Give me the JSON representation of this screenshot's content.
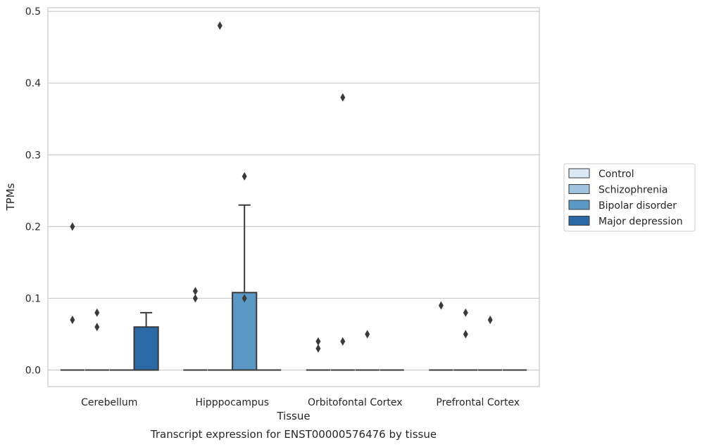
{
  "chart_data": {
    "type": "box",
    "title": "",
    "caption": "Transcript expression for ENST00000576476 by tissue",
    "xlabel": "Tissue",
    "ylabel": "TPMs",
    "ylim": [
      -0.023,
      0.505
    ],
    "yticks": [
      0.0,
      0.1,
      0.2,
      0.3,
      0.4,
      0.5
    ],
    "ytick_labels": [
      "0.0",
      "0.1",
      "0.2",
      "0.3",
      "0.4",
      "0.5"
    ],
    "categories": [
      "Cerebellum",
      "Hipppocampus",
      "Orbitofontal Cortex",
      "Prefrontal Cortex"
    ],
    "grid": "horizontal",
    "legend_position": "right",
    "series": [
      {
        "name": "Control",
        "color": "#dbe9f6",
        "boxes": [
          {
            "q1": 0,
            "median": 0,
            "q3": 0,
            "whisker_low": 0,
            "whisker_high": 0,
            "outliers": [
              0.2,
              0.07
            ]
          },
          {
            "q1": 0,
            "median": 0,
            "q3": 0,
            "whisker_low": 0,
            "whisker_high": 0,
            "outliers": [
              0.11,
              0.1
            ]
          },
          {
            "q1": 0,
            "median": 0,
            "q3": 0,
            "whisker_low": 0,
            "whisker_high": 0,
            "outliers": [
              0.04,
              0.03
            ]
          },
          {
            "q1": 0,
            "median": 0,
            "q3": 0,
            "whisker_low": 0,
            "whisker_high": 0,
            "outliers": [
              0.09
            ]
          }
        ]
      },
      {
        "name": "Schizophrenia",
        "color": "#a1c4de",
        "boxes": [
          {
            "q1": 0,
            "median": 0,
            "q3": 0,
            "whisker_low": 0,
            "whisker_high": 0,
            "outliers": [
              0.08,
              0.06
            ]
          },
          {
            "q1": 0,
            "median": 0,
            "q3": 0,
            "whisker_low": 0,
            "whisker_high": 0,
            "outliers": [
              0.48
            ]
          },
          {
            "q1": 0,
            "median": 0,
            "q3": 0,
            "whisker_low": 0,
            "whisker_high": 0,
            "outliers": [
              0.38,
              0.04
            ]
          },
          {
            "q1": 0,
            "median": 0,
            "q3": 0,
            "whisker_low": 0,
            "whisker_high": 0,
            "outliers": [
              0.08,
              0.05
            ]
          }
        ]
      },
      {
        "name": "Bipolar disorder",
        "color": "#5b98c4",
        "boxes": [
          {
            "q1": 0,
            "median": 0,
            "q3": 0,
            "whisker_low": 0,
            "whisker_high": 0,
            "outliers": []
          },
          {
            "q1": 0,
            "median": 0,
            "q3": 0.108,
            "whisker_low": 0,
            "whisker_high": 0.23,
            "outliers": [
              0.27,
              0.1
            ]
          },
          {
            "q1": 0,
            "median": 0,
            "q3": 0,
            "whisker_low": 0,
            "whisker_high": 0,
            "outliers": [
              0.05
            ]
          },
          {
            "q1": 0,
            "median": 0,
            "q3": 0,
            "whisker_low": 0,
            "whisker_high": 0,
            "outliers": [
              0.07
            ]
          }
        ]
      },
      {
        "name": "Major depression",
        "color": "#2a69a6",
        "boxes": [
          {
            "q1": 0,
            "median": 0,
            "q3": 0.06,
            "whisker_low": 0,
            "whisker_high": 0.08,
            "outliers": []
          },
          {
            "q1": 0,
            "median": 0,
            "q3": 0,
            "whisker_low": 0,
            "whisker_high": 0,
            "outliers": []
          },
          {
            "q1": 0,
            "median": 0,
            "q3": 0,
            "whisker_low": 0,
            "whisker_high": 0,
            "outliers": []
          },
          {
            "q1": 0,
            "median": 0,
            "q3": 0,
            "whisker_low": 0,
            "whisker_high": 0,
            "outliers": []
          }
        ]
      }
    ]
  }
}
